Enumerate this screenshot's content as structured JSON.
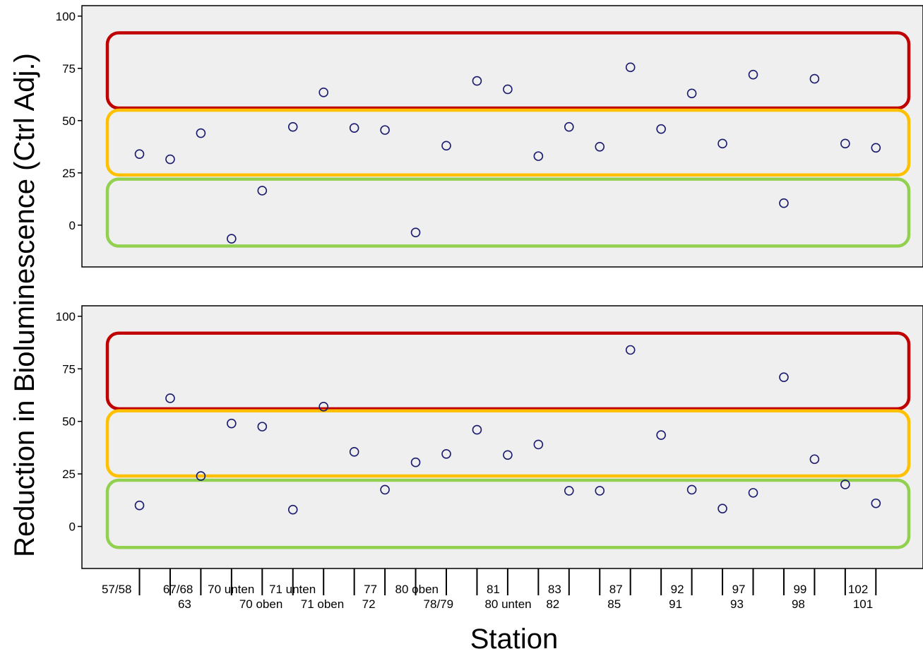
{
  "chart_data": {
    "type": "scatter",
    "xlabel": "Station",
    "ylabel": "Reduction in Bioluminescence (Ctrl Adj.)",
    "ylim": [
      -20,
      105
    ],
    "yticks": [
      0,
      25,
      50,
      75,
      100
    ],
    "grid": false,
    "background_color": "#efefef",
    "marker_color": "#1a1a6e",
    "categories": [
      "57/58",
      "63",
      "67/68",
      "70 oben",
      "70 unten",
      "71 oben",
      "71 unten",
      "72",
      "77",
      "78/79",
      "80 oben",
      "80 unten",
      "81",
      "82",
      "83",
      "85",
      "87",
      "91",
      "92",
      "93",
      "97",
      "98",
      "99",
      "101",
      "102"
    ],
    "bands": [
      {
        "name": "red",
        "color": "#c00000",
        "range": [
          56,
          92
        ]
      },
      {
        "name": "orange",
        "color": "#ffc000",
        "range": [
          24,
          55
        ]
      },
      {
        "name": "green",
        "color": "#92d050",
        "range": [
          -10,
          22
        ]
      }
    ],
    "panels": [
      {
        "values": [
          34,
          31.5,
          44,
          -6.5,
          16.5,
          47,
          63.5,
          46.5,
          45.5,
          -3.5,
          38,
          69,
          65,
          33,
          47,
          37.5,
          75.5,
          46,
          63,
          39,
          72,
          10.5,
          70,
          39,
          37
        ]
      },
      {
        "values": [
          10,
          61,
          24,
          49,
          47.5,
          8,
          57,
          35.5,
          17.5,
          30.5,
          34.5,
          46,
          34,
          39,
          17,
          17,
          84,
          43.5,
          17.5,
          8.5,
          16,
          71,
          32,
          20,
          11
        ]
      }
    ]
  }
}
